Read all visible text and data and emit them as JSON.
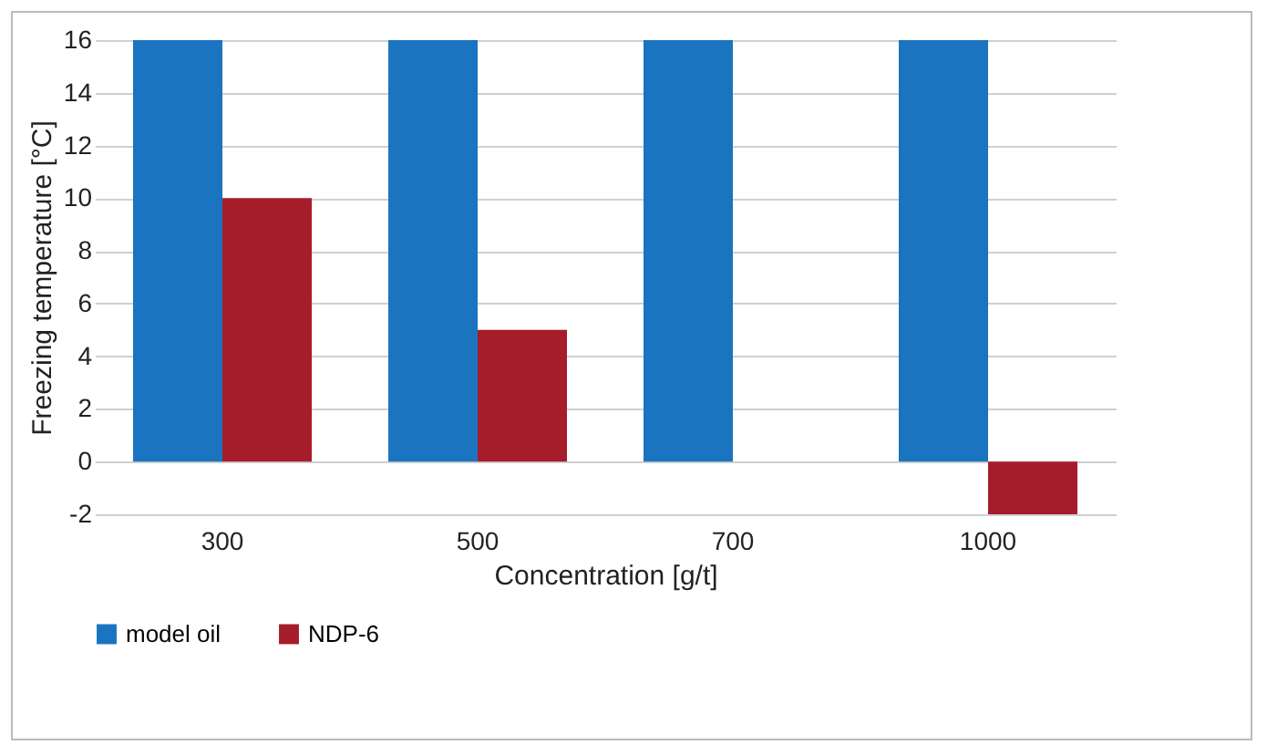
{
  "chart_data": {
    "type": "bar",
    "xlabel": "Concentration [g/t]",
    "ylabel": "Freezing temperature [°C]",
    "categories": [
      "300",
      "500",
      "700",
      "1000"
    ],
    "series": [
      {
        "name": "model oil",
        "color": "#1a74bf",
        "values": [
          16,
          16,
          16,
          16
        ]
      },
      {
        "name": "NDP-6",
        "color": "#a51d2a",
        "values": [
          10,
          5,
          0,
          -2
        ]
      }
    ],
    "ylim": [
      -2,
      16
    ],
    "yticks": [
      -2,
      0,
      2,
      4,
      6,
      8,
      10,
      12,
      14,
      16
    ],
    "grid": "y",
    "legend": "bottom"
  }
}
